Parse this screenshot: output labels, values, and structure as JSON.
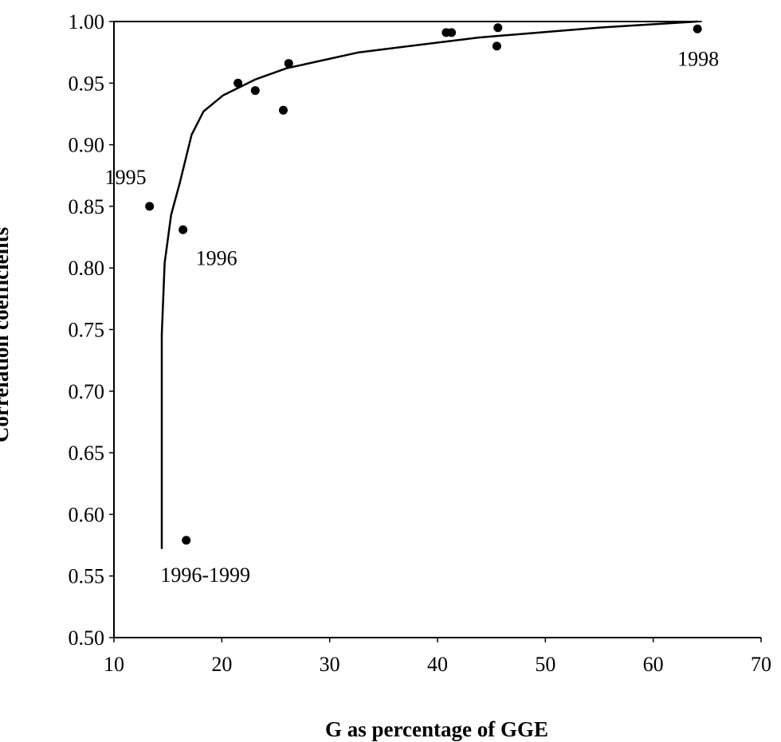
{
  "chart_data": {
    "type": "scatter",
    "title": "",
    "xlabel": "G as percentage of GGE",
    "ylabel": "Correlation coefficients",
    "xlim": [
      10,
      70
    ],
    "ylim": [
      0.5,
      1.0
    ],
    "xticks": [
      "10",
      "20",
      "30",
      "40",
      "50",
      "60",
      "70"
    ],
    "yticks": [
      "0.50",
      "0.55",
      "0.60",
      "0.65",
      "0.70",
      "0.75",
      "0.80",
      "0.85",
      "0.90",
      "0.95",
      "1.00"
    ],
    "grid": false,
    "points": [
      {
        "x": 13.3,
        "y": 0.85,
        "label": "1995"
      },
      {
        "x": 16.4,
        "y": 0.831,
        "label": "1996"
      },
      {
        "x": 16.7,
        "y": 0.579,
        "label": "1996-1999"
      },
      {
        "x": 21.5,
        "y": 0.95,
        "label": ""
      },
      {
        "x": 23.1,
        "y": 0.944,
        "label": ""
      },
      {
        "x": 25.7,
        "y": 0.928,
        "label": ""
      },
      {
        "x": 26.2,
        "y": 0.966,
        "label": ""
      },
      {
        "x": 40.8,
        "y": 0.991,
        "label": ""
      },
      {
        "x": 41.3,
        "y": 0.991,
        "label": ""
      },
      {
        "x": 45.5,
        "y": 0.98,
        "label": ""
      },
      {
        "x": 45.6,
        "y": 0.995,
        "label": ""
      },
      {
        "x": 64.1,
        "y": 0.994,
        "label": "1998"
      }
    ],
    "fit_curve": [
      [
        14.43,
        0.572
      ],
      [
        14.43,
        0.746
      ],
      [
        14.7,
        0.804
      ],
      [
        15.3,
        0.843
      ],
      [
        16.1,
        0.869
      ],
      [
        17.2,
        0.908
      ],
      [
        18.3,
        0.927
      ],
      [
        20.1,
        0.94
      ],
      [
        23.1,
        0.953
      ],
      [
        26.0,
        0.962
      ],
      [
        32.7,
        0.975
      ],
      [
        43.8,
        0.987
      ],
      [
        54.9,
        0.995
      ],
      [
        64.1,
        1.0
      ]
    ],
    "colors": {
      "marks": "#000000",
      "background": "#ffffff"
    }
  }
}
